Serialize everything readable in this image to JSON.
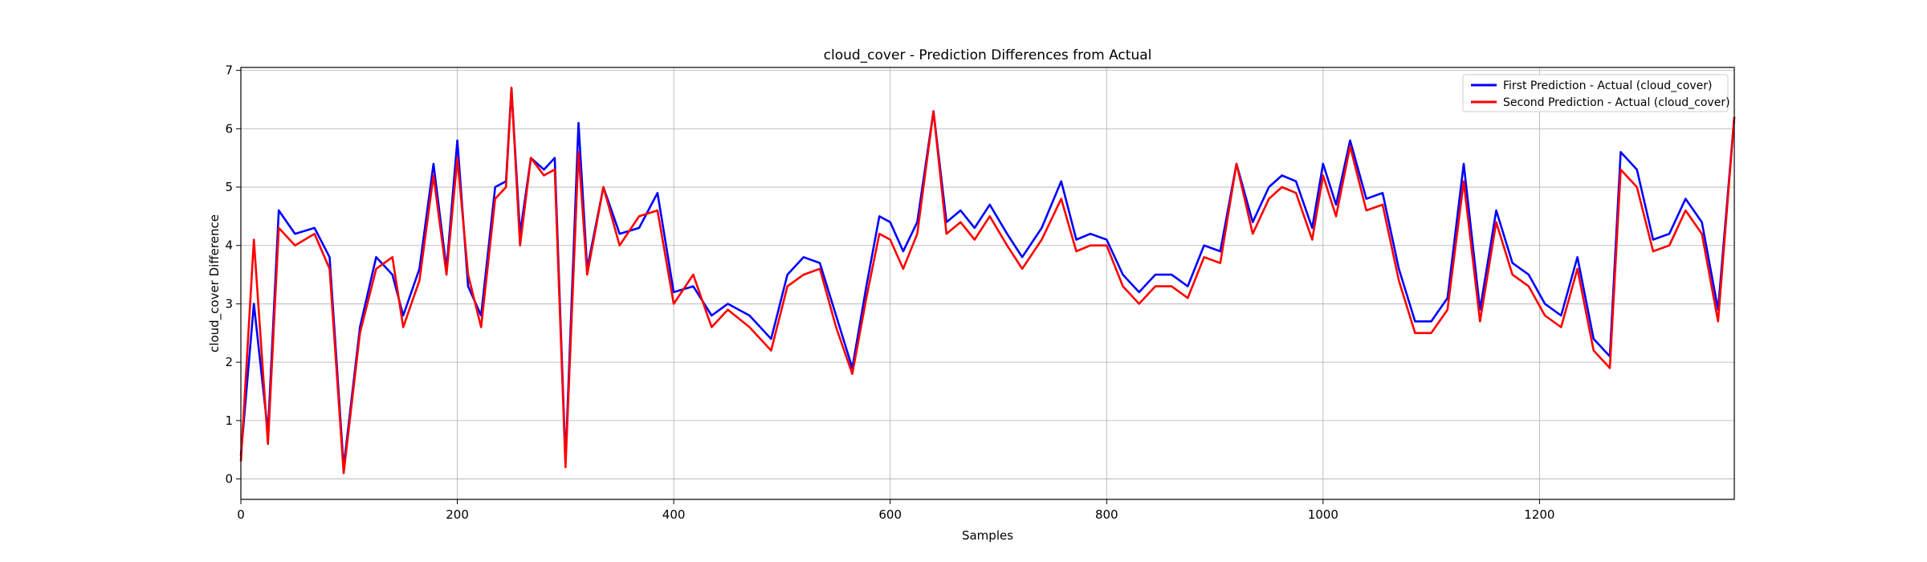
{
  "chart_data": {
    "type": "line",
    "title": "cloud_cover - Prediction Differences from Actual",
    "xlabel": "Samples",
    "ylabel": "cloud_cover Difference",
    "xlim": [
      0,
      1380
    ],
    "ylim": [
      -0.35,
      7.05
    ],
    "x_ticks": [
      0,
      200,
      400,
      600,
      800,
      1000,
      1200
    ],
    "y_ticks": [
      0,
      1,
      2,
      3,
      4,
      5,
      6,
      7
    ],
    "grid": true,
    "legend_position": "top-right",
    "series": [
      {
        "name": "First Prediction - Actual (cloud_cover)",
        "color": "#0000ff",
        "x": [
          0,
          12,
          25,
          35,
          50,
          68,
          82,
          95,
          110,
          125,
          140,
          150,
          165,
          178,
          190,
          200,
          210,
          222,
          235,
          245,
          250,
          258,
          268,
          280,
          290,
          300,
          312,
          320,
          335,
          350,
          368,
          385,
          400,
          418,
          435,
          450,
          470,
          490,
          505,
          520,
          535,
          550,
          565,
          578,
          590,
          600,
          612,
          625,
          640,
          652,
          665,
          678,
          692,
          708,
          722,
          740,
          758,
          772,
          785,
          800,
          815,
          830,
          845,
          860,
          875,
          890,
          905,
          920,
          935,
          950,
          962,
          975,
          990,
          1000,
          1012,
          1025,
          1040,
          1055,
          1070,
          1085,
          1100,
          1115,
          1130,
          1145,
          1160,
          1175,
          1190,
          1205,
          1220,
          1235,
          1250,
          1265,
          1275,
          1290,
          1305,
          1320,
          1335,
          1350,
          1365,
          1380
        ],
        "values": [
          0.4,
          3.0,
          0.8,
          4.6,
          4.2,
          4.3,
          3.8,
          0.2,
          2.6,
          3.8,
          3.5,
          2.8,
          3.6,
          5.4,
          3.6,
          5.8,
          3.3,
          2.8,
          5.0,
          5.1,
          6.7,
          4.2,
          5.5,
          5.3,
          5.5,
          0.3,
          6.1,
          3.6,
          5.0,
          4.2,
          4.3,
          4.9,
          3.2,
          3.3,
          2.8,
          3.0,
          2.8,
          2.4,
          3.5,
          3.8,
          3.7,
          2.8,
          1.9,
          3.3,
          4.5,
          4.4,
          3.9,
          4.4,
          6.3,
          4.4,
          4.6,
          4.3,
          4.7,
          4.2,
          3.8,
          4.3,
          5.1,
          4.1,
          4.2,
          4.1,
          3.5,
          3.2,
          3.5,
          3.5,
          3.3,
          4.0,
          3.9,
          5.4,
          4.4,
          5.0,
          5.2,
          5.1,
          4.3,
          5.4,
          4.7,
          5.8,
          4.8,
          4.9,
          3.6,
          2.7,
          2.7,
          3.1,
          5.4,
          2.9,
          4.6,
          3.7,
          3.5,
          3.0,
          2.8,
          3.8,
          2.4,
          2.1,
          5.6,
          5.3,
          4.1,
          4.2,
          4.8,
          4.4,
          2.9,
          6.2
        ]
      },
      {
        "name": "Second Prediction - Actual (cloud_cover)",
        "color": "#ff0000",
        "x": [
          0,
          12,
          25,
          35,
          50,
          68,
          82,
          95,
          110,
          125,
          140,
          150,
          165,
          178,
          190,
          200,
          210,
          222,
          235,
          245,
          250,
          258,
          268,
          280,
          290,
          300,
          312,
          320,
          335,
          350,
          368,
          385,
          400,
          418,
          435,
          450,
          470,
          490,
          505,
          520,
          535,
          550,
          565,
          578,
          590,
          600,
          612,
          625,
          640,
          652,
          665,
          678,
          692,
          708,
          722,
          740,
          758,
          772,
          785,
          800,
          815,
          830,
          845,
          860,
          875,
          890,
          905,
          920,
          935,
          950,
          962,
          975,
          990,
          1000,
          1012,
          1025,
          1040,
          1055,
          1070,
          1085,
          1100,
          1115,
          1130,
          1145,
          1160,
          1175,
          1190,
          1205,
          1220,
          1235,
          1250,
          1265,
          1275,
          1290,
          1305,
          1320,
          1335,
          1350,
          1365,
          1380
        ],
        "values": [
          0.3,
          4.1,
          0.6,
          4.3,
          4.0,
          4.2,
          3.6,
          0.1,
          2.5,
          3.6,
          3.8,
          2.6,
          3.4,
          5.2,
          3.5,
          5.5,
          3.5,
          2.6,
          4.8,
          5.0,
          6.7,
          4.0,
          5.5,
          5.2,
          5.3,
          0.2,
          5.6,
          3.5,
          5.0,
          4.0,
          4.5,
          4.6,
          3.0,
          3.5,
          2.6,
          2.9,
          2.6,
          2.2,
          3.3,
          3.5,
          3.6,
          2.6,
          1.8,
          3.1,
          4.2,
          4.1,
          3.6,
          4.2,
          6.3,
          4.2,
          4.4,
          4.1,
          4.5,
          4.0,
          3.6,
          4.1,
          4.8,
          3.9,
          4.0,
          4.0,
          3.3,
          3.0,
          3.3,
          3.3,
          3.1,
          3.8,
          3.7,
          5.4,
          4.2,
          4.8,
          5.0,
          4.9,
          4.1,
          5.2,
          4.5,
          5.7,
          4.6,
          4.7,
          3.4,
          2.5,
          2.5,
          2.9,
          5.1,
          2.7,
          4.4,
          3.5,
          3.3,
          2.8,
          2.6,
          3.6,
          2.2,
          1.9,
          5.3,
          5.0,
          3.9,
          4.0,
          4.6,
          4.2,
          2.7,
          6.2
        ]
      }
    ]
  }
}
